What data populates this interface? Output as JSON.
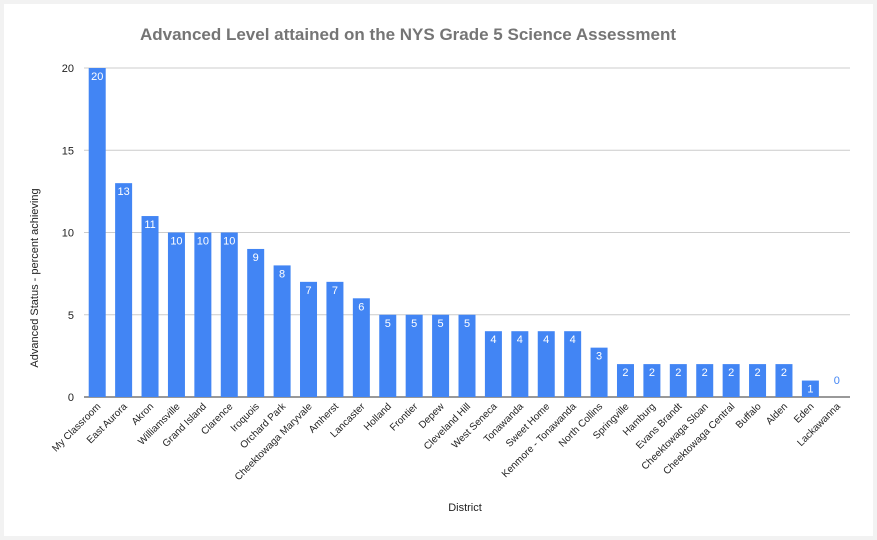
{
  "chart_data": {
    "type": "bar",
    "title": "Advanced Level attained on the NYS Grade 5 Science Assessment",
    "xlabel": "District",
    "ylabel": "Advanced Status - percent achieving",
    "ylim": [
      0,
      20
    ],
    "yticks": [
      0,
      5,
      10,
      15,
      20
    ],
    "grid": true,
    "legend": "none",
    "bar_color": "#4285f4",
    "categories": [
      "My Classroom",
      "East Aurora",
      "Akron",
      "Williamsville",
      "Grand Island",
      "Clarence",
      "Iroquois",
      "Orchard Park",
      "Cheektowaga Maryvale",
      "Amherst",
      "Lancaster",
      "Holland",
      "Frontier",
      "Depew",
      "Cleveland Hill",
      "West Seneca",
      "Tonawanda",
      "Sweet Home",
      "Kenmore - Tonawanda",
      "North Collins",
      "Springville",
      "Hamburg",
      "Evans Brandt",
      "Cheektowaga Sloan",
      "Cheektowaga Central",
      "Buffalo",
      "Alden",
      "Eden",
      "Lackawanna"
    ],
    "values": [
      20,
      13,
      11,
      10,
      10,
      10,
      9,
      8,
      7,
      7,
      6,
      5,
      5,
      5,
      5,
      4,
      4,
      4,
      4,
      3,
      2,
      2,
      2,
      2,
      2,
      2,
      2,
      1,
      0
    ]
  }
}
